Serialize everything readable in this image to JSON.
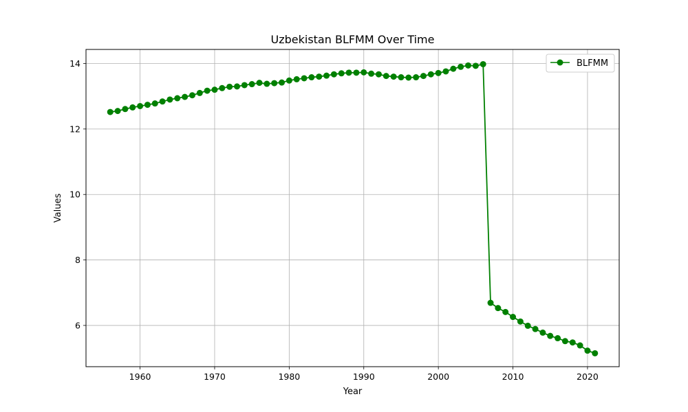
{
  "chart_data": {
    "type": "line",
    "title": "Uzbekistan BLFMM Over Time",
    "xlabel": "Year",
    "ylabel": "Values",
    "xlim": [
      1952.75,
      2024.25
    ],
    "ylim": [
      4.74,
      14.43
    ],
    "x_ticks": [
      1960,
      1970,
      1980,
      1990,
      2000,
      2010,
      2020
    ],
    "y_ticks": [
      6,
      8,
      10,
      12,
      14
    ],
    "grid": true,
    "legend_position": "top-right",
    "series_color": "#008000",
    "series": [
      {
        "name": "BLFMM",
        "x": [
          1956,
          1957,
          1958,
          1959,
          1960,
          1961,
          1962,
          1963,
          1964,
          1965,
          1966,
          1967,
          1968,
          1969,
          1970,
          1971,
          1972,
          1973,
          1974,
          1975,
          1976,
          1977,
          1978,
          1979,
          1980,
          1981,
          1982,
          1983,
          1984,
          1985,
          1986,
          1987,
          1988,
          1989,
          1990,
          1991,
          1992,
          1993,
          1994,
          1995,
          1996,
          1997,
          1998,
          1999,
          2000,
          2001,
          2002,
          2003,
          2004,
          2005,
          2006,
          2007,
          2008,
          2009,
          2010,
          2011,
          2012,
          2013,
          2014,
          2015,
          2016,
          2017,
          2018,
          2019,
          2020,
          2021
        ],
        "values": [
          12.52,
          12.55,
          12.61,
          12.66,
          12.7,
          12.74,
          12.78,
          12.84,
          12.9,
          12.94,
          12.98,
          13.03,
          13.1,
          13.17,
          13.2,
          13.25,
          13.29,
          13.3,
          13.34,
          13.37,
          13.41,
          13.38,
          13.4,
          13.42,
          13.48,
          13.52,
          13.55,
          13.58,
          13.6,
          13.63,
          13.67,
          13.7,
          13.72,
          13.72,
          13.73,
          13.69,
          13.67,
          13.62,
          13.6,
          13.58,
          13.57,
          13.58,
          13.62,
          13.67,
          13.71,
          13.76,
          13.84,
          13.9,
          13.94,
          13.93,
          13.98,
          6.69,
          6.53,
          6.41,
          6.26,
          6.12,
          5.99,
          5.89,
          5.78,
          5.68,
          5.61,
          5.52,
          5.48,
          5.39,
          5.23,
          5.15
        ]
      }
    ]
  }
}
